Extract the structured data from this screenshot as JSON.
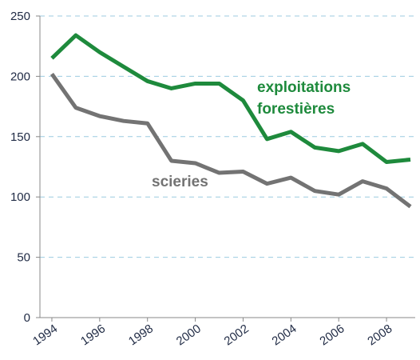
{
  "chart_data": {
    "type": "line",
    "x": [
      1994,
      1995,
      1996,
      1997,
      1998,
      1999,
      2000,
      2001,
      2002,
      2003,
      2004,
      2005,
      2006,
      2007,
      2008,
      2009
    ],
    "series": [
      {
        "name": "exploitations forestières",
        "color": "#1e8a3c",
        "values": [
          215,
          234,
          220,
          208,
          196,
          190,
          194,
          194,
          180,
          148,
          154,
          141,
          138,
          144,
          129,
          131
        ]
      },
      {
        "name": "scieries",
        "color": "#737373",
        "values": [
          202,
          174,
          167,
          163,
          161,
          130,
          128,
          120,
          121,
          111,
          116,
          105,
          102,
          113,
          107,
          92
        ]
      }
    ],
    "xlim": [
      1993.5,
      2009.2
    ],
    "xticks": [
      1994,
      1996,
      1998,
      2000,
      2002,
      2004,
      2006,
      2008
    ],
    "ylim": [
      0,
      250
    ],
    "yticks": [
      0,
      50,
      100,
      150,
      200,
      250
    ],
    "grid": true
  }
}
